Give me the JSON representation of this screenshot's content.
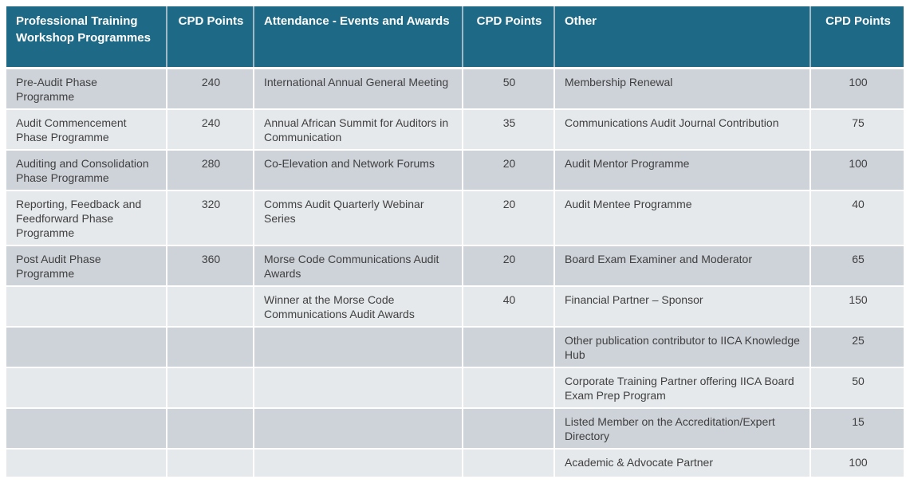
{
  "columns": [
    {
      "header": "Professional Training Workshop Programmes",
      "type": "text"
    },
    {
      "header": "CPD Points",
      "type": "number"
    },
    {
      "header": "Attendance - Events and Awards",
      "type": "text"
    },
    {
      "header": "CPD Points",
      "type": "number"
    },
    {
      "header": "Other",
      "type": "text"
    },
    {
      "header": "CPD Points",
      "type": "number"
    }
  ],
  "rows": [
    [
      "Pre-Audit Phase Programme",
      "240",
      "International Annual General Meeting",
      "50",
      "Membership Renewal",
      "100"
    ],
    [
      "Audit Commencement Phase Programme",
      "240",
      "Annual African Summit for Auditors in Communication",
      "35",
      "Communications Audit Journal Contribution",
      "75"
    ],
    [
      "Auditing and Consolidation Phase Programme",
      "280",
      "Co-Elevation and Network Forums",
      "20",
      "Audit Mentor Programme",
      "100"
    ],
    [
      "Reporting, Feedback and Feedforward Phase Programme",
      "320",
      "Comms Audit Quarterly Webinar Series",
      "20",
      "Audit Mentee Programme",
      "40"
    ],
    [
      "Post Audit Phase Programme",
      "360",
      "Morse Code Communications Audit Awards",
      "20",
      "Board Exam Examiner and Moderator",
      "65"
    ],
    [
      "",
      "",
      "Winner at the Morse Code Communications Audit Awards",
      "40",
      "Financial Partner – Sponsor",
      "150"
    ],
    [
      "",
      "",
      "",
      "",
      "Other publication contributor to IICA Knowledge Hub",
      "25"
    ],
    [
      "",
      "",
      "",
      "",
      "Corporate Training Partner offering IICA Board Exam Prep Program",
      "50"
    ],
    [
      "",
      "",
      "",
      "",
      "Listed Member on the Accreditation/Expert Directory",
      "15"
    ],
    [
      "",
      "",
      "",
      "",
      "Academic & Advocate Partner",
      "100"
    ]
  ],
  "colors": {
    "header_bg": "#1e6a86",
    "header_text": "#ffffff",
    "header_divider": "#9fb9c6",
    "row_dark": "#ced2d9",
    "row_light": "#e6e9ec",
    "body_text": "#404040",
    "background": "#ffffff"
  }
}
